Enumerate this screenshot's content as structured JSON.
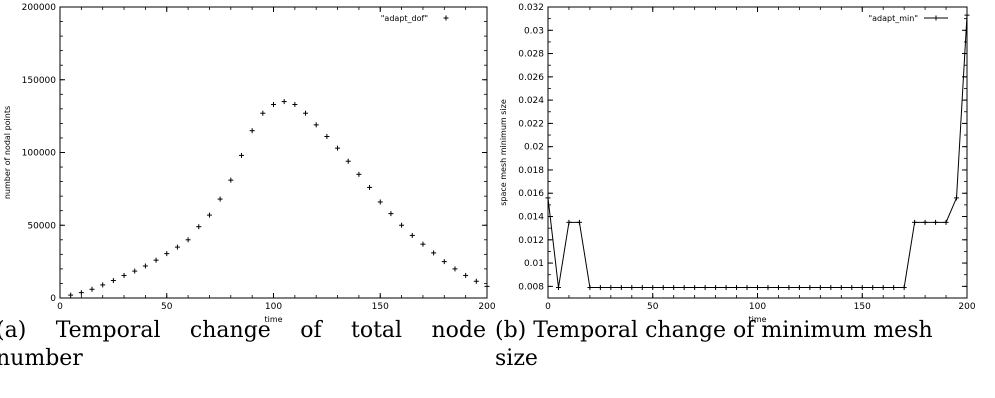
{
  "chart_data": [
    {
      "type": "scatter",
      "title": "",
      "xlabel": "time",
      "ylabel": "number of nodal points",
      "xlim": [
        0,
        200
      ],
      "ylim": [
        0,
        200000
      ],
      "xticks": [
        "0",
        "50",
        "100",
        "150",
        "200"
      ],
      "yticks": [
        "0",
        "50000",
        "100000",
        "150000",
        "200000"
      ],
      "legend": "top-right",
      "series": [
        {
          "name": "\"adapt_dof\"",
          "marker": "+",
          "x": [
            5,
            10,
            15,
            20,
            25,
            30,
            35,
            40,
            45,
            50,
            55,
            60,
            65,
            70,
            75,
            80,
            85,
            90,
            95,
            100,
            105,
            110,
            115,
            120,
            125,
            130,
            135,
            140,
            145,
            150,
            155,
            160,
            165,
            170,
            175,
            180,
            185,
            190,
            195,
            200
          ],
          "y": [
            2000,
            3700,
            6000,
            9000,
            12000,
            15500,
            18500,
            22000,
            26000,
            30500,
            35000,
            40000,
            49000,
            57000,
            68000,
            81000,
            98000,
            115000,
            127000,
            133000,
            135000,
            133000,
            127000,
            119000,
            111000,
            103000,
            94000,
            85000,
            76000,
            66000,
            58000,
            50000,
            43000,
            37000,
            31000,
            25000,
            20000,
            15500,
            11500,
            8000
          ]
        }
      ]
    },
    {
      "type": "line",
      "title": "",
      "xlabel": "time",
      "ylabel": "space mesh minimum size",
      "xlim": [
        0,
        200
      ],
      "ylim": [
        0.007,
        0.032
      ],
      "xticks": [
        "0",
        "50",
        "100",
        "150",
        "200"
      ],
      "yticks": [
        "0.008",
        "0.01",
        "0.012",
        "0.014",
        "0.016",
        "0.018",
        "0.02",
        "0.022",
        "0.024",
        "0.026",
        "0.028",
        "0.03",
        "0.032"
      ],
      "legend": "top-right",
      "series": [
        {
          "name": "\"adapt_min\"",
          "marker": "+",
          "x": [
            0,
            5,
            10,
            15,
            20,
            25,
            30,
            35,
            40,
            45,
            50,
            55,
            60,
            65,
            70,
            75,
            80,
            85,
            90,
            95,
            100,
            105,
            110,
            115,
            120,
            125,
            130,
            135,
            140,
            145,
            150,
            155,
            160,
            165,
            170,
            175,
            180,
            185,
            190,
            195,
            200
          ],
          "y": [
            0.0156,
            0.0079,
            0.0135,
            0.0135,
            0.0079,
            0.0079,
            0.0079,
            0.0079,
            0.0079,
            0.0079,
            0.0079,
            0.0079,
            0.0079,
            0.0079,
            0.0079,
            0.0079,
            0.0079,
            0.0079,
            0.0079,
            0.0079,
            0.0079,
            0.0079,
            0.0079,
            0.0079,
            0.0079,
            0.0079,
            0.0079,
            0.0079,
            0.0079,
            0.0079,
            0.0079,
            0.0079,
            0.0079,
            0.0079,
            0.0079,
            0.0135,
            0.0135,
            0.0135,
            0.0135,
            0.0156,
            0.0313
          ]
        }
      ]
    }
  ],
  "captions": {
    "a_line1_words": [
      "(a)",
      "Temporal",
      "change",
      "of",
      "total",
      "node"
    ],
    "a_line2": "number",
    "b_line1": "(b) Temporal change of minimum mesh",
    "b_line2": "size"
  }
}
